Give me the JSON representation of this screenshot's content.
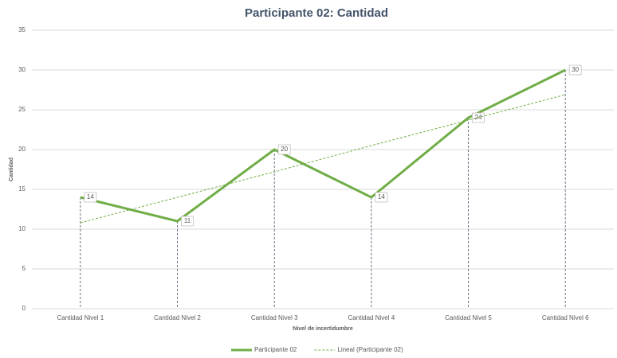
{
  "chart_data": {
    "type": "line",
    "title": "Participante 02: Cantidad",
    "x_label": "Nivel de incertidumbre",
    "y_label": "Cantidad",
    "categories": [
      "Cantidad Nivel 1",
      "Cantidad Nivel 2",
      "Cantidad Nivel 3",
      "Cantidad Nivel 4",
      "Cantidad Nivel 5",
      "Cantidad Nivel 6"
    ],
    "series": [
      {
        "name": "Participante 02",
        "color": "#70ad47",
        "values": [
          14,
          11,
          20,
          14,
          24,
          30
        ],
        "data_labels": true,
        "drop_lines": true
      },
      {
        "name": "Lineal (Participante 02)",
        "color": "#70ad47",
        "values": [
          10.8,
          14,
          17.2,
          20.5,
          23.7,
          26.9
        ],
        "dashed": true
      }
    ],
    "ylim": [
      0,
      35
    ],
    "yticks": [
      0,
      5,
      10,
      15,
      20,
      25,
      30,
      35
    ],
    "grid": true,
    "legend": "bottom"
  }
}
